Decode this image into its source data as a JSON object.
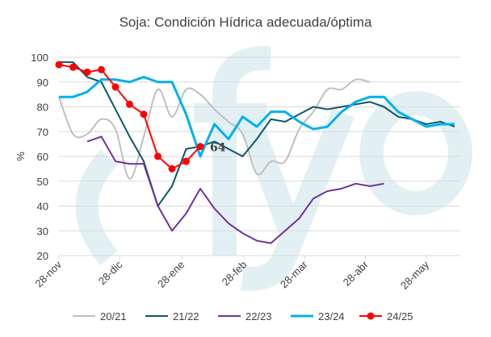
{
  "watermark": "fyo",
  "chart_data": {
    "type": "line",
    "title": "Soja: Condición Hídrica adecuada/óptima",
    "xlabel": "",
    "ylabel": "%",
    "ylim": [
      20,
      100
    ],
    "yticks": [
      20,
      30,
      40,
      50,
      60,
      70,
      80,
      90,
      100
    ],
    "x_unit": "weeks since 28-nov",
    "xlim": [
      0,
      28.4
    ],
    "xticks": [
      {
        "label": "28-nov",
        "week": 0
      },
      {
        "label": "28-dic",
        "week": 4.3
      },
      {
        "label": "28-ene",
        "week": 8.7
      },
      {
        "label": "28-feb",
        "week": 13.1
      },
      {
        "label": "28-mar",
        "week": 17.4
      },
      {
        "label": "28-abr",
        "week": 21.7
      },
      {
        "label": "28-may",
        "week": 26.0
      }
    ],
    "grid": true,
    "legend_position": "bottom",
    "annotation": {
      "text": "64",
      "series": "24/25",
      "week": 10
    },
    "series": [
      {
        "name": "20/21",
        "color": "#bfbfbf",
        "width": 2,
        "smooth": true,
        "markers": false,
        "start": 0,
        "values": [
          84,
          69,
          69,
          75,
          71,
          51,
          68,
          87,
          76,
          87,
          85,
          79,
          74,
          69,
          53,
          58,
          58,
          71,
          78,
          87,
          87,
          91,
          90
        ]
      },
      {
        "name": "21/22",
        "color": "#0b5669",
        "width": 2,
        "smooth": false,
        "markers": false,
        "start": 0,
        "values": [
          98,
          98,
          92,
          90,
          79,
          68,
          58,
          40,
          48,
          63,
          64,
          66,
          63,
          60,
          67,
          75,
          74,
          77,
          80,
          79,
          80,
          81,
          82,
          80,
          76,
          75,
          73,
          74,
          72
        ]
      },
      {
        "name": "22/23",
        "color": "#7030a0",
        "width": 2,
        "smooth": false,
        "markers": false,
        "start": 2,
        "values": [
          66,
          68,
          58,
          57,
          57,
          40,
          30,
          37,
          47,
          39,
          33,
          29,
          26,
          25,
          30,
          35,
          43,
          46,
          47,
          49,
          48,
          49
        ]
      },
      {
        "name": "23/24",
        "color": "#00b0f0",
        "width": 3,
        "smooth": false,
        "markers": false,
        "start": 0,
        "values": [
          84,
          84,
          86,
          91,
          91,
          90,
          92,
          90,
          90,
          77,
          60,
          73,
          67,
          76,
          72,
          78,
          78,
          74,
          71,
          72,
          78,
          82,
          84,
          84,
          78,
          75,
          72,
          73,
          73
        ]
      },
      {
        "name": "24/25",
        "color": "#ff0000",
        "width": 2,
        "smooth": false,
        "markers": true,
        "start": 0,
        "values": [
          97,
          96,
          94,
          95,
          88,
          81,
          77,
          60,
          55,
          58,
          64
        ]
      }
    ]
  }
}
